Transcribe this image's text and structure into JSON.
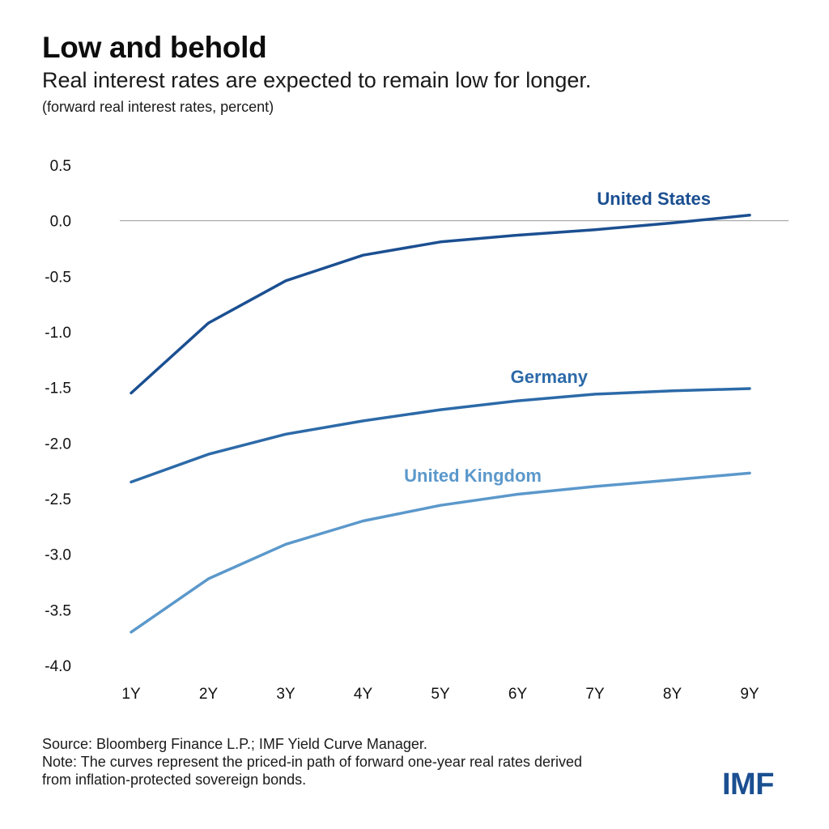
{
  "title": "Low and behold",
  "subtitle": "Real interest rates are expected to remain low for longer.",
  "unit_note": "(forward real interest rates, percent)",
  "source": "Source: Bloomberg Finance L.P.; IMF Yield Curve Manager.",
  "note_line1": "Note: The curves represent the priced-in path of forward one-year real rates derived",
  "note_line2": "from inflation-protected sovereign bonds.",
  "logo": "IMF",
  "colors": {
    "united_states": "#1b4f91",
    "germany": "#2c6aa8",
    "united_kingdom": "#5b98cb",
    "zero_line": "#999999"
  },
  "chart_data": {
    "type": "line",
    "title": "Low and behold",
    "subtitle": "Real interest rates are expected to remain low for longer.",
    "ylabel": "(forward real interest rates, percent)",
    "xlabel": "",
    "categories": [
      "1Y",
      "2Y",
      "3Y",
      "4Y",
      "5Y",
      "6Y",
      "7Y",
      "8Y",
      "9Y"
    ],
    "ylim": [
      -4.0,
      0.5
    ],
    "yticks": [
      "0.5",
      "0.0",
      "-0.5",
      "-1.0",
      "-1.5",
      "-2.0",
      "-2.5",
      "-3.0",
      "-3.5",
      "-4.0"
    ],
    "grid": false,
    "zero_line": true,
    "series": [
      {
        "name": "United States",
        "color": "#1b4f91",
        "values": [
          -1.55,
          -0.92,
          -0.54,
          -0.31,
          -0.19,
          -0.13,
          -0.08,
          -0.02,
          0.05
        ]
      },
      {
        "name": "Germany",
        "color": "#2c6aa8",
        "values": [
          -2.35,
          -2.1,
          -1.92,
          -1.8,
          -1.7,
          -1.62,
          -1.56,
          -1.53,
          -1.51
        ]
      },
      {
        "name": "United Kingdom",
        "color": "#5b98cb",
        "values": [
          -3.7,
          -3.22,
          -2.91,
          -2.7,
          -2.56,
          -2.46,
          -2.39,
          -2.33,
          -2.27
        ]
      }
    ]
  }
}
